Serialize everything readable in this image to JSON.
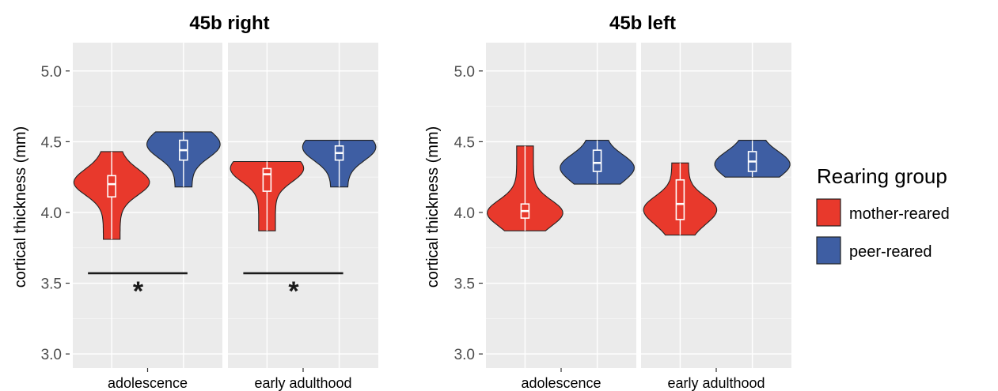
{
  "chart_data": [
    {
      "type": "violin",
      "title": "45b right",
      "ylabel": "cortical thickness (mm)",
      "ylim": [
        2.9,
        5.2
      ],
      "yticks": [
        "3.0",
        "3.5",
        "4.0",
        "4.5",
        "5.0"
      ],
      "facets": [
        {
          "label": "adolescence",
          "significance": "*",
          "groups": [
            {
              "group": "mother-reared",
              "min": 3.81,
              "q1": 4.11,
              "median": 4.2,
              "q3": 4.26,
              "max": 4.43,
              "maxWidthAt": 4.22
            },
            {
              "group": "peer-reared",
              "min": 4.18,
              "q1": 4.37,
              "median": 4.44,
              "q3": 4.51,
              "max": 4.57,
              "maxWidthAt": 4.5
            }
          ]
        },
        {
          "label": "early adulthood",
          "significance": "*",
          "groups": [
            {
              "group": "mother-reared",
              "min": 3.87,
              "q1": 4.15,
              "median": 4.27,
              "q3": 4.31,
              "max": 4.36,
              "maxWidthAt": 4.33
            },
            {
              "group": "peer-reared",
              "min": 4.18,
              "q1": 4.37,
              "median": 4.42,
              "q3": 4.47,
              "max": 4.51,
              "maxWidthAt": 4.48
            }
          ]
        }
      ]
    },
    {
      "type": "violin",
      "title": "45b left",
      "ylabel": "cortical thickness (mm)",
      "ylim": [
        2.9,
        5.2
      ],
      "yticks": [
        "3.0",
        "3.5",
        "4.0",
        "4.5",
        "5.0"
      ],
      "facets": [
        {
          "label": "adolescence",
          "significance": "",
          "groups": [
            {
              "group": "mother-reared",
              "min": 3.87,
              "q1": 3.96,
              "median": 4.01,
              "q3": 4.06,
              "max": 4.47,
              "maxWidthAt": 3.99
            },
            {
              "group": "peer-reared",
              "min": 4.2,
              "q1": 4.29,
              "median": 4.35,
              "q3": 4.44,
              "max": 4.51,
              "maxWidthAt": 4.3
            }
          ]
        },
        {
          "label": "early adulthood",
          "significance": "",
          "groups": [
            {
              "group": "mother-reared",
              "min": 3.84,
              "q1": 3.95,
              "median": 4.06,
              "q3": 4.23,
              "max": 4.35,
              "maxWidthAt": 4.0
            },
            {
              "group": "peer-reared",
              "min": 4.25,
              "q1": 4.29,
              "median": 4.36,
              "q3": 4.43,
              "max": 4.51,
              "maxWidthAt": 4.33
            }
          ]
        }
      ]
    }
  ],
  "legend": {
    "title": "Rearing group",
    "placement": "right",
    "items": [
      {
        "label": "mother-reared",
        "color": "#e8392c"
      },
      {
        "label": "peer-reared",
        "color": "#3e5ea3"
      }
    ]
  },
  "colors": {
    "panel_background": "#ebebeb",
    "grid": "#ffffff",
    "mother-reared": "#e8392c",
    "peer-reared": "#3e5ea3"
  }
}
